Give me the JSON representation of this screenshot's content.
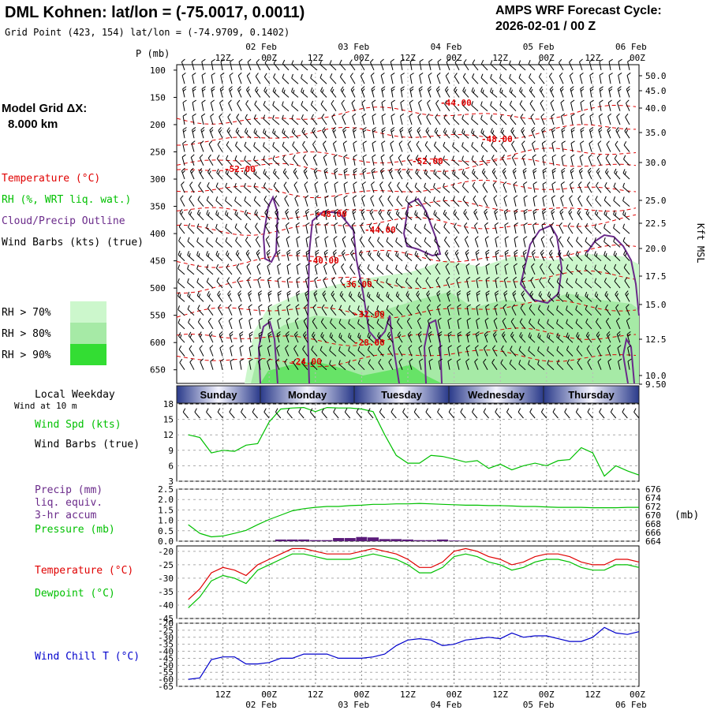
{
  "header": {
    "title": "DML Kohnen:  lat/lon = (-75.0017, 0.0011)",
    "subtitle": "Grid Point (423, 154) lat/lon = (-74.9709, 0.1402)",
    "cycle_line1": "AMPS WRF Forecast Cycle:",
    "cycle_line2": "2026-02-01 / 00  Z"
  },
  "model": {
    "grid_label": "Model Grid ΔX:",
    "grid_value": "8.000 km"
  },
  "legend": {
    "temperature": "Temperature (°C)",
    "rh": "RH (%, WRT liq. wat.)",
    "cloud": "Cloud/Precip Outline",
    "barbs": "Wind Barbs (kts) (true)",
    "rh70": "RH > 70%",
    "rh80": "RH > 80%",
    "rh90": "RH > 90%",
    "p_unit": "P (mb)",
    "alt_unit": "Kft MSL",
    "local_weekday": "Local Weekday",
    "wind_at": "Wind at 10 m",
    "wind_spd": "Wind Spd (kts)",
    "wind_barbs": "Wind Barbs (true)",
    "precip1": "Precip (mm)",
    "precip2": "liq. equiv.",
    "precip3": "3-hr accum",
    "pressure": "Pressure (mb)",
    "pressure_unit": "(mb)",
    "temp": "Temperature (°C)",
    "dew": "Dewpoint (°C)",
    "chill": "Wind Chill T (°C)"
  },
  "colors": {
    "temperature": "#e00000",
    "rh": "#00c000",
    "cloud": "#6a2a8a",
    "rh70": "#ccf7cc",
    "rh80": "#a6eaa6",
    "rh90": "#33dd33",
    "wind": "#00c000",
    "dew": "#00c000",
    "chill": "#0000cc",
    "precip": "#5a1a7a"
  },
  "chart_data": {
    "type": "meteogram",
    "time_labels_top": [
      "12Z",
      "00Z",
      "12Z",
      "00Z",
      "12Z",
      "00Z",
      "12Z",
      "00Z",
      "12Z",
      "00Z"
    ],
    "date_labels_top": [
      "02 Feb",
      "03 Feb",
      "04 Feb",
      "05 Feb",
      "06 Feb"
    ],
    "time_labels_bottom": [
      "12Z",
      "00Z",
      "12Z",
      "00Z",
      "12Z",
      "00Z",
      "12Z",
      "00Z",
      "12Z",
      "00Z"
    ],
    "date_labels_bottom": [
      "02 Feb",
      "03 Feb",
      "04 Feb",
      "05 Feb",
      "06 Feb"
    ],
    "weekdays": [
      "Sunday",
      "Monday",
      "Tuesday",
      "Wednesday",
      "Thursday"
    ],
    "pressure_levels": [
      "100",
      "150",
      "200",
      "250",
      "300",
      "350",
      "400",
      "450",
      "500",
      "550",
      "600",
      "650"
    ],
    "altitude_labels": [
      "50.0",
      "45.0",
      "40.0",
      "35.0",
      "30.0",
      "25.0",
      "22.5",
      "20.0",
      "17.5",
      "15.0",
      "12.5",
      "10.0",
      "9.50"
    ],
    "temperature_contour_labels": [
      "-44.00",
      "-48.00",
      "-52.00",
      "-52.00",
      "-48.00",
      "-44.00",
      "-40.00",
      "-36.00",
      "-32.00",
      "-28.00",
      "-24.00"
    ],
    "hours": [
      3,
      6,
      9,
      12,
      15,
      18,
      21,
      24,
      27,
      30,
      33,
      36,
      39,
      42,
      45,
      48,
      51,
      54,
      57,
      60,
      63,
      66,
      69,
      72,
      75,
      78,
      81,
      84,
      87,
      90,
      93,
      96,
      99,
      102,
      105,
      108,
      111,
      114,
      117,
      120
    ],
    "wind_speed": {
      "yticks": [
        "18",
        "15",
        "12",
        "9",
        "6",
        "3"
      ],
      "ylim": [
        3,
        18
      ],
      "values": [
        12,
        11.5,
        8.5,
        9,
        8.8,
        10,
        10.3,
        14.5,
        17,
        17.2,
        17.3,
        16.5,
        17.3,
        17.2,
        17.2,
        17,
        16.5,
        12,
        8,
        6.5,
        6.5,
        8,
        7.8,
        7.3,
        6.7,
        7,
        5.5,
        6.3,
        5.2,
        6,
        6.5,
        6,
        7,
        7.2,
        9.5,
        8.5,
        4,
        6,
        5,
        4.2
      ]
    },
    "precip": {
      "yticks": [
        "2.5",
        "2.0",
        "1.5",
        "1.0",
        "0.5",
        "0.0"
      ],
      "ylim": [
        0,
        2.5
      ],
      "values": [
        0,
        0,
        0,
        0,
        0,
        0,
        0,
        0,
        0.08,
        0.08,
        0.08,
        0.05,
        0.05,
        0.15,
        0.15,
        0.2,
        0.18,
        0.1,
        0.1,
        0.08,
        0.05,
        0.05,
        0.08,
        0.03,
        0.02,
        0,
        0,
        0,
        0,
        0,
        0,
        0,
        0,
        0,
        0,
        0,
        0,
        0,
        0,
        0
      ]
    },
    "pressure": {
      "yticks": [
        "676",
        "674",
        "672",
        "670",
        "668",
        "666",
        "664"
      ],
      "ylim": [
        664,
        676
      ],
      "values": [
        667.8,
        665.8,
        665,
        665.2,
        665.8,
        666.5,
        667.8,
        669,
        670,
        671,
        671.5,
        671.8,
        672,
        672,
        672.2,
        672.3,
        672.5,
        672.5,
        672.6,
        672.6,
        672.7,
        672.6,
        672.5,
        672.4,
        672.3,
        672.3,
        672.2,
        672.2,
        672.1,
        672.0,
        672.0,
        671.9,
        671.8,
        671.8,
        671.8,
        671.7,
        671.7,
        671.7,
        671.8,
        671.8
      ]
    },
    "temperature": {
      "yticks": [
        "-20",
        "-25",
        "-30",
        "-35",
        "-40",
        "-45"
      ],
      "ylim": [
        -45,
        -18
      ],
      "values": [
        -38,
        -34,
        -28,
        -26,
        -27,
        -29,
        -25,
        -23,
        -21,
        -19,
        -19,
        -20,
        -21,
        -21,
        -21,
        -20,
        -19,
        -20,
        -21,
        -23,
        -26,
        -26,
        -24,
        -20,
        -19,
        -20,
        -22,
        -23,
        -25,
        -24,
        -22,
        -21,
        -21,
        -22,
        -24,
        -25,
        -25,
        -23,
        -23,
        -24
      ]
    },
    "dewpoint": {
      "values": [
        -41,
        -37,
        -31,
        -29,
        -30,
        -32,
        -27,
        -25,
        -23,
        -21,
        -21,
        -22,
        -23,
        -23,
        -23,
        -22,
        -21,
        -22,
        -23,
        -25,
        -28,
        -28,
        -26,
        -22,
        -21,
        -22,
        -24,
        -25,
        -27,
        -26,
        -24,
        -23,
        -23,
        -24,
        -26,
        -27,
        -27,
        -25,
        -25,
        -26
      ]
    },
    "wind_chill": {
      "yticks": [
        "-20",
        "-25",
        "-30",
        "-35",
        "-40",
        "-45",
        "-50",
        "-55",
        "-60",
        "-65"
      ],
      "ylim": [
        -65,
        -20
      ],
      "values": [
        -60,
        -59,
        -46,
        -44,
        -44,
        -49,
        -49,
        -48,
        -45,
        -45,
        -42,
        -42,
        -42,
        -45,
        -45,
        -45,
        -44,
        -42,
        -36,
        -32,
        -31,
        -32,
        -36,
        -35,
        -32,
        -31,
        -30,
        -31,
        -27,
        -30,
        -29,
        -29,
        -31,
        -33,
        -33,
        -30,
        -23,
        -27,
        -28,
        -26
      ]
    }
  }
}
